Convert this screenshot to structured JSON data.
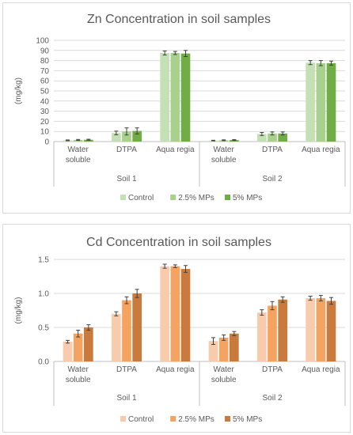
{
  "chart_data": [
    {
      "type": "bar",
      "title": "Zn Concentration in soil samples",
      "ylabel": "(mg/kg)",
      "ylim": [
        0,
        100
      ],
      "yticks": [
        "0",
        "10",
        "20",
        "30",
        "40",
        "50",
        "60",
        "70",
        "80",
        "90",
        "100"
      ],
      "categories": [
        "Water soluble",
        "DTPA",
        "Aqua regia",
        "Water soluble",
        "DTPA",
        "Aqua regia"
      ],
      "category_lines": [
        [
          "Water",
          "soluble"
        ],
        [
          "DTPA"
        ],
        [
          "Aqua regia"
        ],
        [
          "Water",
          "soluble"
        ],
        [
          "DTPA"
        ],
        [
          "Aqua regia"
        ]
      ],
      "groups": [
        "Soil 1",
        "Soil 2"
      ],
      "grid": true,
      "legend_position": "bottom",
      "series": [
        {
          "name": "Control",
          "color": "#c5e0b4",
          "values": [
            1.2,
            8.5,
            87.5,
            1.0,
            7.5,
            78.0
          ],
          "errors": [
            0.4,
            1.8,
            2.0,
            0.3,
            1.5,
            2.0
          ]
        },
        {
          "name": "2.5% MPs",
          "color": "#a9d18e",
          "values": [
            1.6,
            10.0,
            87.5,
            1.3,
            8.0,
            77.5
          ],
          "errors": [
            0.5,
            3.5,
            1.5,
            0.4,
            1.5,
            2.5
          ]
        },
        {
          "name": "5% MPs",
          "color": "#70ad47",
          "values": [
            1.8,
            10.5,
            87.0,
            1.5,
            8.0,
            77.5
          ],
          "errors": [
            0.5,
            3.0,
            3.0,
            0.4,
            1.5,
            2.0
          ]
        }
      ]
    },
    {
      "type": "bar",
      "title": "Cd Concentration in soil samples",
      "ylabel": "(mg/kg)",
      "ylim": [
        0,
        1.5
      ],
      "yticks": [
        "0.0",
        "0.5",
        "1.0",
        "1.5"
      ],
      "categories": [
        "Water soluble",
        "DTPA",
        "Aqua regia",
        "Water soluble",
        "DTPA",
        "Aqua regia"
      ],
      "category_lines": [
        [
          "Water",
          "soluble"
        ],
        [
          "DTPA"
        ],
        [
          "Aqua regia"
        ],
        [
          "Water",
          "soluble"
        ],
        [
          "DTPA"
        ],
        [
          "Aqua regia"
        ]
      ],
      "groups": [
        "Soil 1",
        "Soil 2"
      ],
      "grid": true,
      "legend_position": "bottom",
      "series": [
        {
          "name": "Control",
          "color": "#f8cbad",
          "values": [
            0.29,
            0.7,
            1.4,
            0.3,
            0.72,
            0.93
          ],
          "errors": [
            0.02,
            0.03,
            0.03,
            0.05,
            0.04,
            0.03
          ]
        },
        {
          "name": "2.5% MPs",
          "color": "#f4a460",
          "values": [
            0.41,
            0.9,
            1.4,
            0.35,
            0.82,
            0.93
          ],
          "errors": [
            0.05,
            0.05,
            0.02,
            0.04,
            0.06,
            0.04
          ]
        },
        {
          "name": "5% MPs",
          "color": "#c97b3d",
          "values": [
            0.5,
            1.0,
            1.36,
            0.41,
            0.91,
            0.89
          ],
          "errors": [
            0.04,
            0.06,
            0.05,
            0.03,
            0.04,
            0.05
          ]
        }
      ]
    }
  ]
}
